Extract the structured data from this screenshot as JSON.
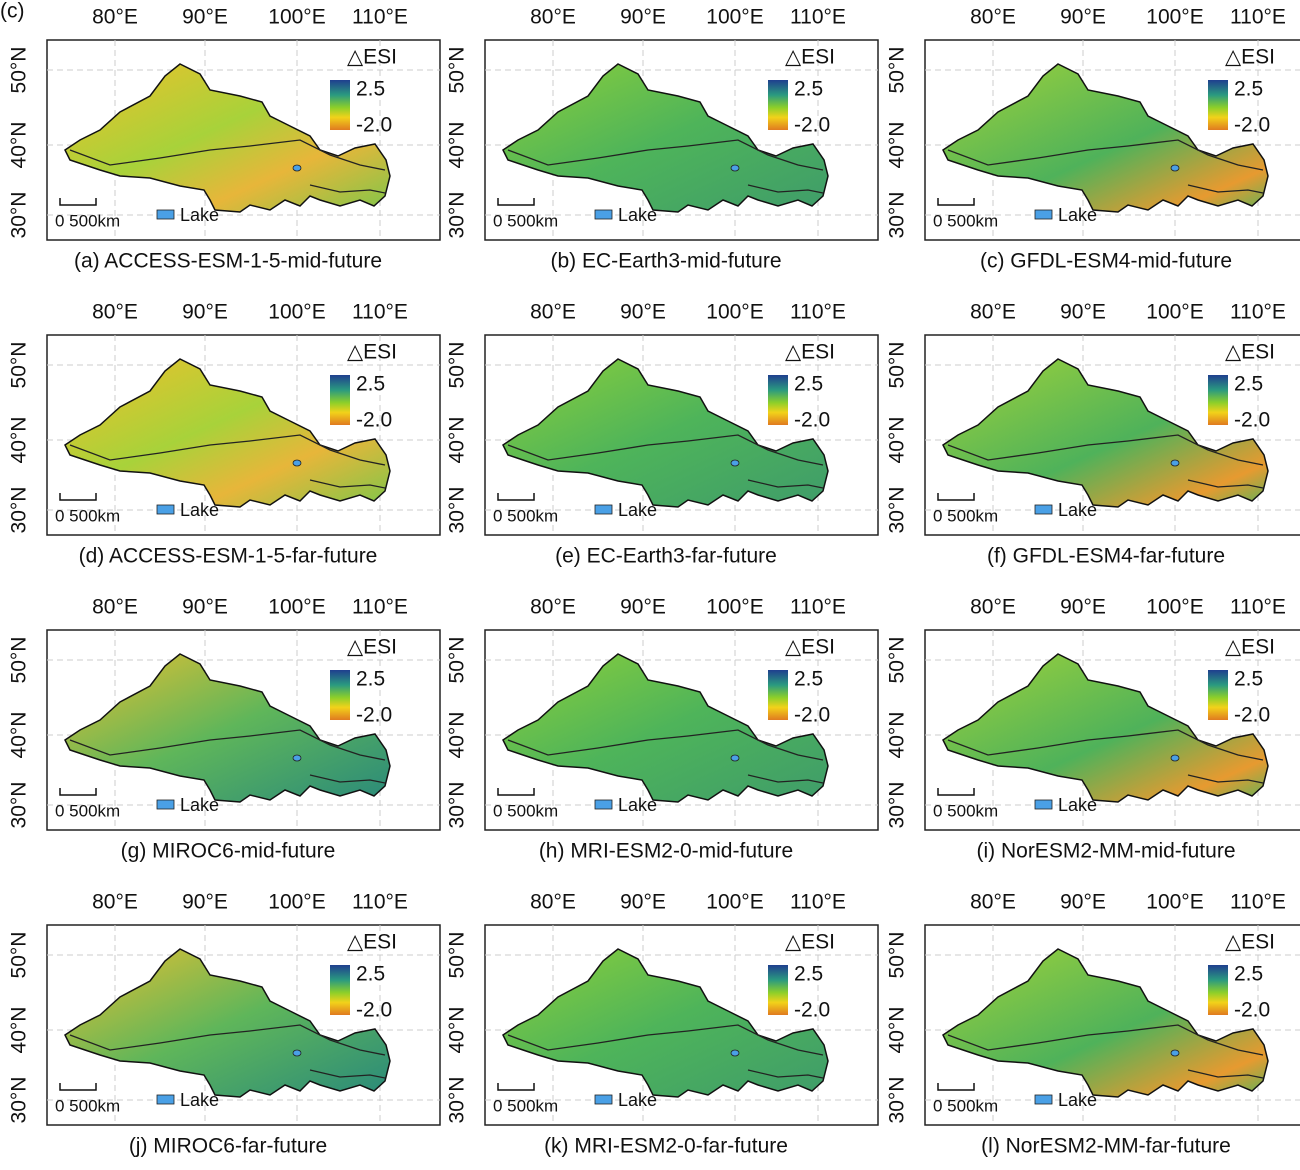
{
  "figure_label": "(c)",
  "lon_labels": [
    "80°E",
    "90°E",
    "100°E",
    "110°E"
  ],
  "lat_labels": [
    "50°N",
    "40°N",
    "30°N"
  ],
  "legend": {
    "title": "△ESI",
    "max": "2.5",
    "min": "-2.0"
  },
  "scale_bar": "0 500km",
  "lake": "Lake",
  "panels": [
    {
      "caption": "(a) ACCESS-ESM-1-5-mid-future"
    },
    {
      "caption": "(b) EC-Earth3-mid-future"
    },
    {
      "caption": "(c)  GFDL-ESM4-mid-future"
    },
    {
      "caption": "(d) ACCESS-ESM-1-5-far-future"
    },
    {
      "caption": "(e)  EC-Earth3-far-future"
    },
    {
      "caption": "(f)  GFDL-ESM4-far-future"
    },
    {
      "caption": "(g)  MIROC6-mid-future"
    },
    {
      "caption": "(h)  MRI-ESM2-0-mid-future"
    },
    {
      "caption": "(i)  NorESM2-MM-mid-future"
    },
    {
      "caption": "(j)  MIROC6-far-future"
    },
    {
      "caption": "(k)  MRI-ESM2-0-far-future"
    },
    {
      "caption": "(l)  NorESM2-MM-far-future"
    }
  ]
}
